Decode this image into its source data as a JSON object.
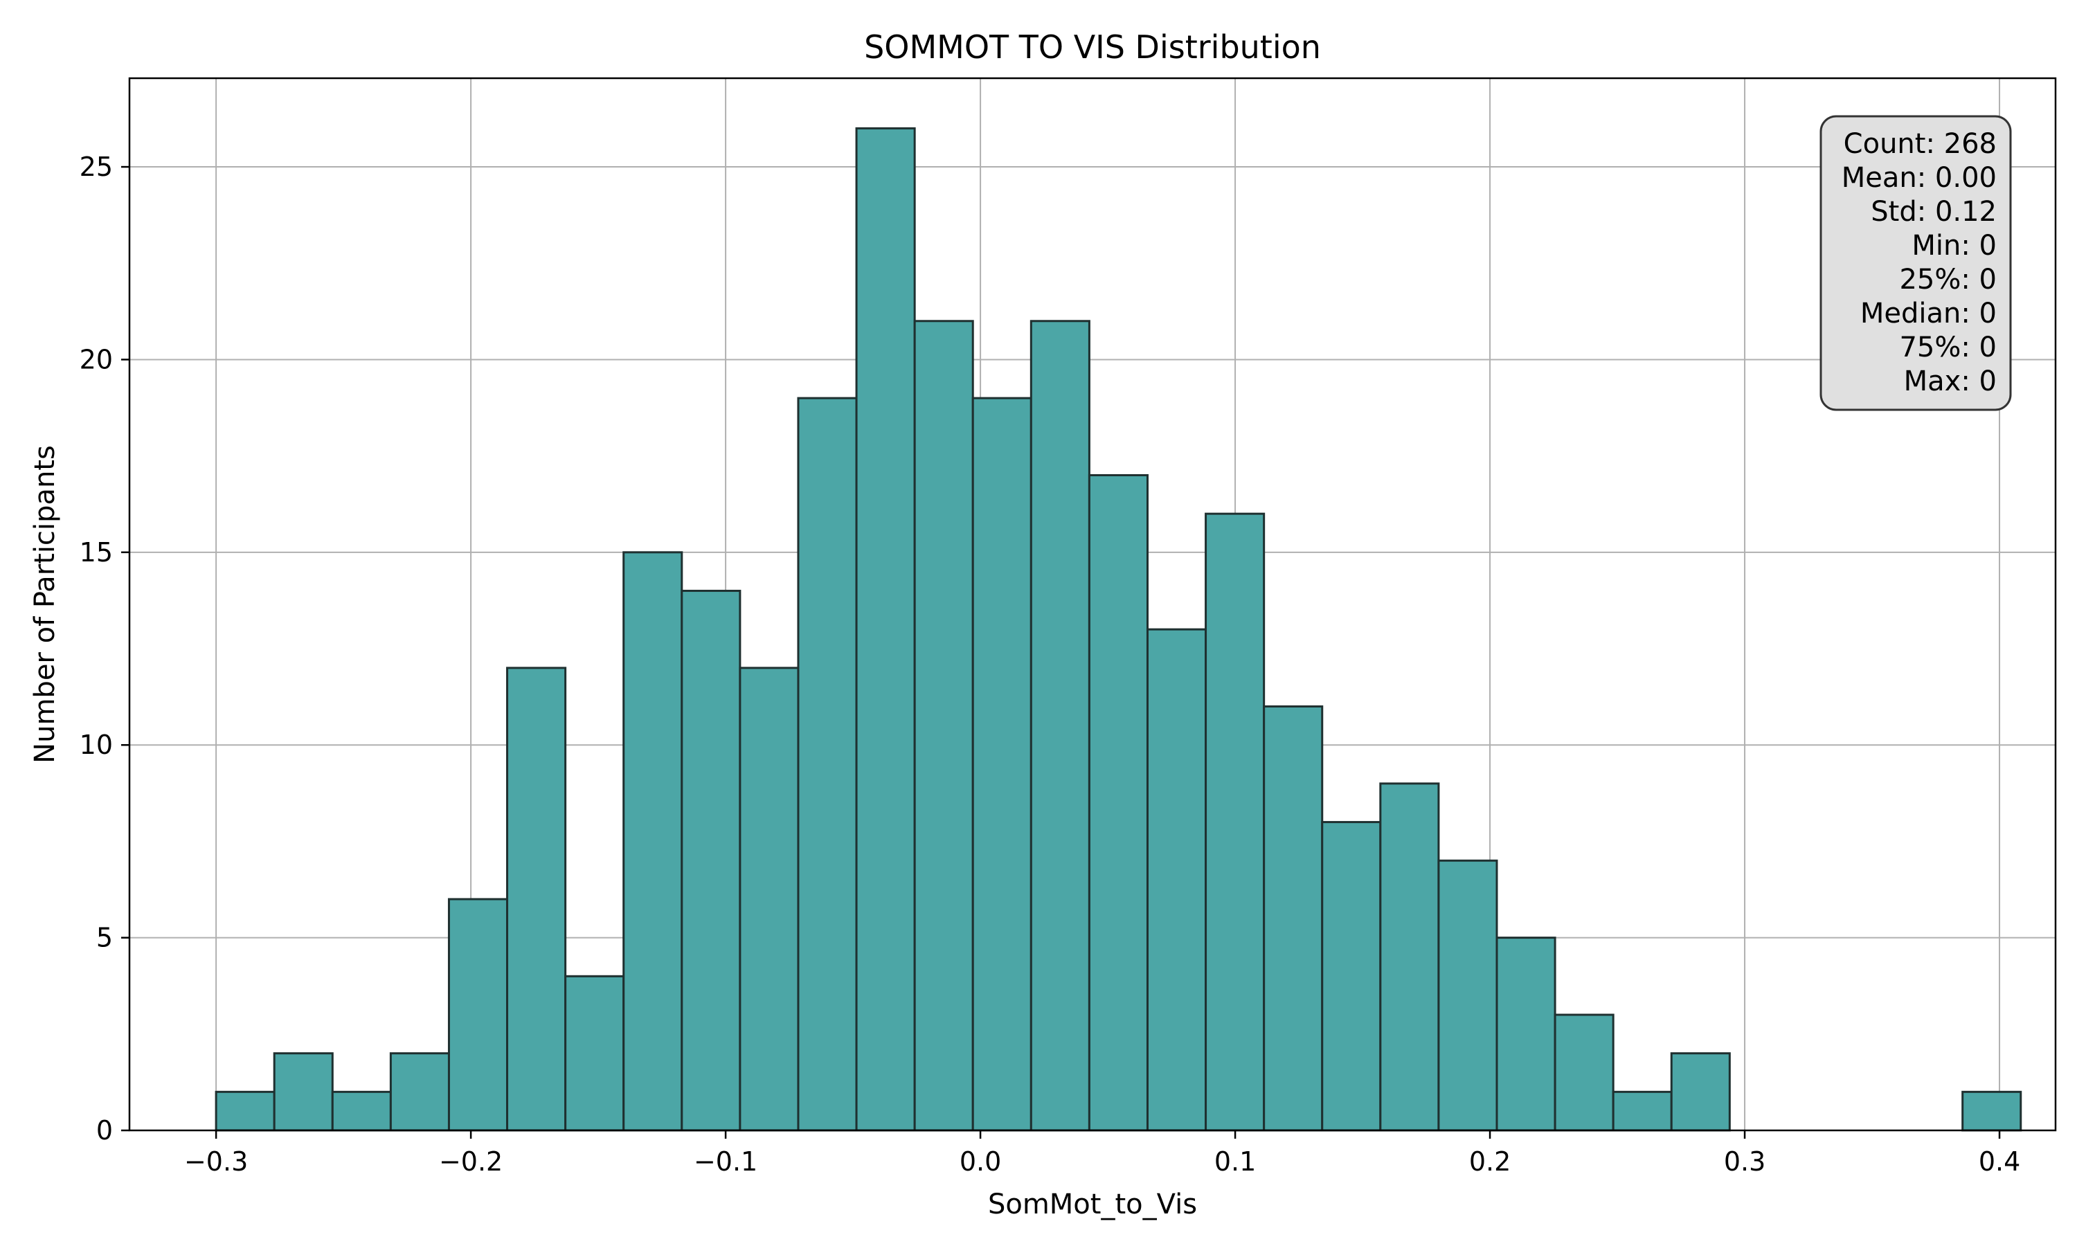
{
  "chart_data": {
    "type": "bar",
    "title": "SOMMOT TO VIS Distribution",
    "xlabel": "SomMot_to_Vis",
    "ylabel": "Number of Participants",
    "xlim": [
      -0.334,
      0.422
    ],
    "ylim": [
      0,
      27.3
    ],
    "bin_start": -0.3,
    "bin_width": 0.02285,
    "counts": [
      1,
      2,
      1,
      2,
      6,
      12,
      4,
      15,
      14,
      12,
      19,
      26,
      21,
      19,
      21,
      17,
      13,
      16,
      11,
      8,
      9,
      7,
      5,
      3,
      1,
      2,
      0,
      0,
      0,
      0,
      1
    ],
    "x_ticks": [
      -0.3,
      -0.2,
      -0.1,
      0.0,
      0.1,
      0.2,
      0.3,
      0.4
    ],
    "x_tick_labels": [
      "−0.3",
      "−0.2",
      "−0.1",
      "0.0",
      "0.1",
      "0.2",
      "0.3",
      "0.4"
    ],
    "y_ticks": [
      0,
      5,
      10,
      15,
      20,
      25
    ],
    "y_tick_labels": [
      "0",
      "5",
      "10",
      "15",
      "20",
      "25"
    ],
    "grid": true,
    "bar_color": "#4ca6a6",
    "edge_color": "#1f3030",
    "stats_box": {
      "position": "top-right",
      "lines": [
        "Count: 268",
        "Mean: 0.00",
        "Std: 0.12",
        "Min: 0",
        "25%: 0",
        "Median: 0",
        "75%: 0",
        "Max: 0"
      ]
    }
  }
}
